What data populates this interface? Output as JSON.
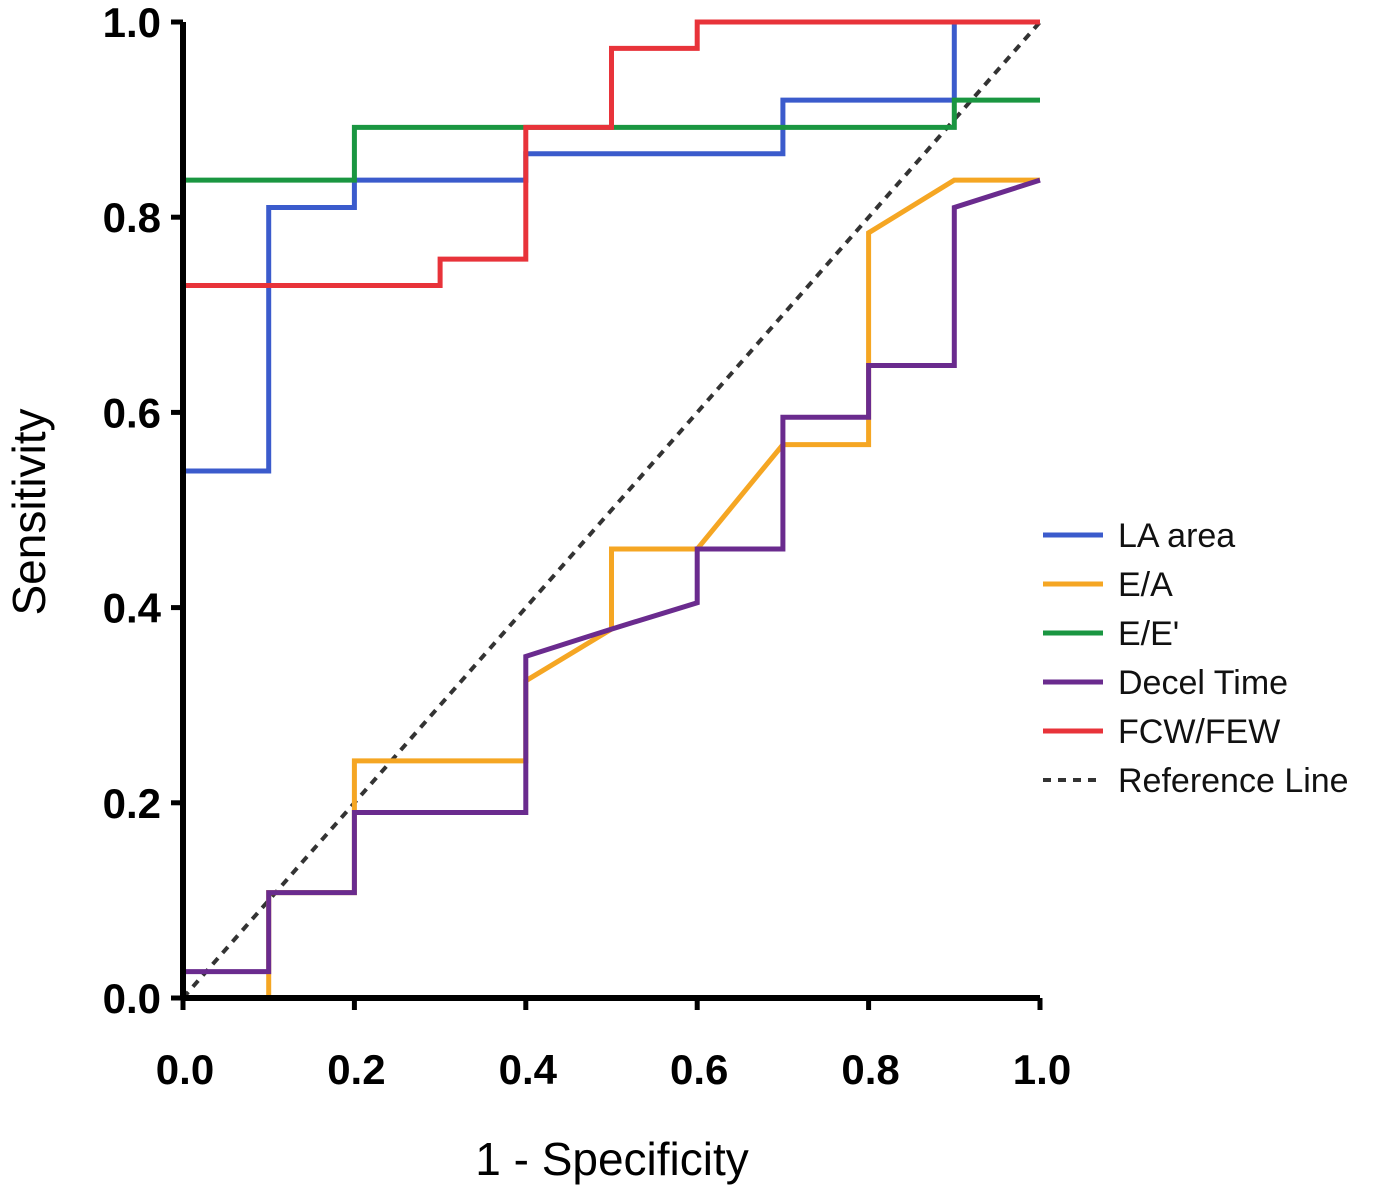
{
  "chart_data": {
    "type": "line",
    "xlabel": "1 - Specificity",
    "ylabel": "Sensitivity",
    "xlim": [
      0,
      1
    ],
    "ylim": [
      0,
      1
    ],
    "x_ticks": [
      "0.0",
      "0.2",
      "0.4",
      "0.6",
      "0.8",
      "1.0"
    ],
    "y_ticks": [
      "0.0",
      "0.2",
      "0.4",
      "0.6",
      "0.8",
      "1.0"
    ],
    "grid": false,
    "legend_position": "right",
    "series": [
      {
        "name": "LA area",
        "color": "#3b5bcc",
        "points": [
          [
            0,
            0
          ],
          [
            0,
            0.54
          ],
          [
            0.1,
            0.54
          ],
          [
            0.1,
            0.81
          ],
          [
            0.2,
            0.81
          ],
          [
            0.2,
            0.838
          ],
          [
            0.4,
            0.838
          ],
          [
            0.4,
            0.865
          ],
          [
            0.7,
            0.865
          ],
          [
            0.7,
            0.92
          ],
          [
            0.9,
            0.92
          ],
          [
            0.9,
            1.0
          ],
          [
            1.0,
            1.0
          ]
        ]
      },
      {
        "name": "E/A",
        "color": "#f5a623",
        "points": [
          [
            0,
            0
          ],
          [
            0.1,
            0
          ],
          [
            0.1,
            0.108
          ],
          [
            0.2,
            0.108
          ],
          [
            0.2,
            0.243
          ],
          [
            0.4,
            0.243
          ],
          [
            0.4,
            0.325
          ],
          [
            0.5,
            0.378
          ],
          [
            0.5,
            0.46
          ],
          [
            0.6,
            0.46
          ],
          [
            0.7,
            0.567
          ],
          [
            0.8,
            0.567
          ],
          [
            0.8,
            0.784
          ],
          [
            0.9,
            0.838
          ],
          [
            1.0,
            0.838
          ]
        ]
      },
      {
        "name": "E/E'",
        "color": "#1a9641",
        "points": [
          [
            0,
            0
          ],
          [
            0,
            0.838
          ],
          [
            0.2,
            0.838
          ],
          [
            0.2,
            0.892
          ],
          [
            0.9,
            0.892
          ],
          [
            0.9,
            0.92
          ],
          [
            1.0,
            0.92
          ]
        ]
      },
      {
        "name": "Decel Time",
        "color": "#6a2b8e",
        "points": [
          [
            0,
            0
          ],
          [
            0,
            0.027
          ],
          [
            0.1,
            0.027
          ],
          [
            0.1,
            0.108
          ],
          [
            0.2,
            0.108
          ],
          [
            0.2,
            0.19
          ],
          [
            0.4,
            0.19
          ],
          [
            0.4,
            0.35
          ],
          [
            0.5,
            0.378
          ],
          [
            0.6,
            0.405
          ],
          [
            0.6,
            0.46
          ],
          [
            0.7,
            0.46
          ],
          [
            0.7,
            0.595
          ],
          [
            0.8,
            0.595
          ],
          [
            0.8,
            0.648
          ],
          [
            0.9,
            0.648
          ],
          [
            0.9,
            0.81
          ],
          [
            1.0,
            0.838
          ]
        ]
      },
      {
        "name": "FCW/FEW",
        "color": "#e8333a",
        "points": [
          [
            0,
            0
          ],
          [
            0,
            0.73
          ],
          [
            0.3,
            0.73
          ],
          [
            0.3,
            0.757
          ],
          [
            0.4,
            0.757
          ],
          [
            0.4,
            0.892
          ],
          [
            0.5,
            0.892
          ],
          [
            0.5,
            0.973
          ],
          [
            0.6,
            0.973
          ],
          [
            0.6,
            1.0
          ],
          [
            1.0,
            1.0
          ]
        ]
      }
    ],
    "reference_line": {
      "name": "Reference Line",
      "color": "#333333",
      "points": [
        [
          0,
          0
        ],
        [
          1,
          1
        ]
      ]
    }
  }
}
